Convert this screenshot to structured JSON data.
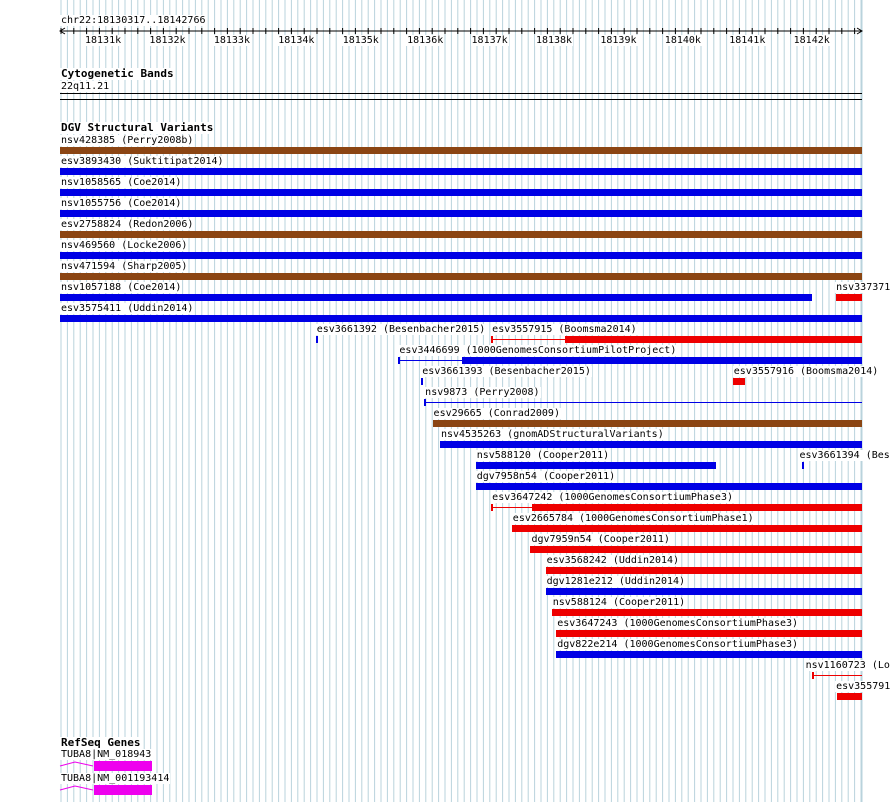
{
  "coords": "chr22:18130317..18142766",
  "ruler_ticks": [
    "18131k",
    "18132k",
    "18133k",
    "18134k",
    "18135k",
    "18136k",
    "18137k",
    "18138k",
    "18139k",
    "18140k",
    "18141k",
    "18142k"
  ],
  "colors": {
    "grid": "#b9d3dc",
    "blue": "#0000e5",
    "red": "#ee0000",
    "brown": "#8b4513",
    "magenta": "#ee00ee"
  },
  "cytoband": {
    "title": "Cytogenetic Bands",
    "band": "22q11.21"
  },
  "dgv": {
    "title": "DGV Structural Variants",
    "features": [
      {
        "label": "nsv428385 (Perry2008b)",
        "color": "brown",
        "start": 18130317,
        "end": 18142766
      },
      {
        "label": "esv3893430 (Suktitipat2014)",
        "color": "blue",
        "start": 18130317,
        "end": 18142766
      },
      {
        "label": "nsv1058565 (Coe2014)",
        "color": "blue",
        "start": 18130317,
        "end": 18142766
      },
      {
        "label": "nsv1055756 (Coe2014)",
        "color": "blue",
        "start": 18130317,
        "end": 18142766
      },
      {
        "label": "esv2758824 (Redon2006)",
        "color": "brown",
        "start": 18130317,
        "end": 18142766
      },
      {
        "label": "nsv469560 (Locke2006)",
        "color": "blue",
        "start": 18130317,
        "end": 18142766
      },
      {
        "label": "nsv471594 (Sharp2005)",
        "color": "brown",
        "start": 18130317,
        "end": 18142766
      },
      {
        "label": "nsv1057188 (Coe2014)",
        "color": "blue",
        "start": 18130317,
        "end": 18141990
      },
      {
        "label": "nsv337371",
        "color": "red",
        "start": 18142370,
        "end": 18142766
      },
      {
        "label": "esv3575411 (Uddin2014)",
        "color": "blue",
        "start": 18130317,
        "end": 18142766
      },
      {
        "label": "esv3661392 (Besenbacher2015)",
        "color": "blue",
        "start": 18134287,
        "end": 18134310
      },
      {
        "label": "esv3557915 (Boomsma2014)",
        "color": "red",
        "start": 18137010,
        "end": 18142766,
        "thin_from": 18137010,
        "thick_from": 18138150
      },
      {
        "label": "esv3446699 (1000GenomesConsortiumPilotProject)",
        "color": "blue",
        "start": 18135570,
        "end": 18142766,
        "thin_from": 18135570,
        "thick_from": 18136560
      },
      {
        "label": "esv3661393 (Besenbacher2015)",
        "color": "blue",
        "start": 18135925,
        "end": 18135950
      },
      {
        "label": "esv3557916 (Boomsma2014)",
        "color": "red",
        "start": 18140760,
        "end": 18140950
      },
      {
        "label": "nsv9873 (Perry2008)",
        "color": "blue",
        "start": 18135970,
        "end": 18142766,
        "thin_only": true
      },
      {
        "label": "esv29665 (Conrad2009)",
        "color": "brown",
        "start": 18136100,
        "end": 18142766
      },
      {
        "label": "nsv4535263 (gnomADStructuralVariants)",
        "color": "blue",
        "start": 18136215,
        "end": 18142766
      },
      {
        "label": "nsv588120 (Cooper2011)",
        "color": "blue",
        "start": 18136770,
        "end": 18140500
      },
      {
        "label": "esv3661394 (Bes",
        "color": "blue",
        "start": 18141830,
        "end": 18141855
      },
      {
        "label": "dgv7958n54 (Cooper2011)",
        "color": "blue",
        "start": 18136770,
        "end": 18142766
      },
      {
        "label": "esv3647242 (1000GenomesConsortiumPhase3)",
        "color": "red",
        "start": 18137010,
        "end": 18142766,
        "thin_from": 18137010,
        "thick_from": 18137650
      },
      {
        "label": "esv2665784 (1000GenomesConsortiumPhase1)",
        "color": "red",
        "start": 18137330,
        "end": 18142766
      },
      {
        "label": "dgv7959n54 (Cooper2011)",
        "color": "red",
        "start": 18137620,
        "end": 18142766
      },
      {
        "label": "esv3568242 (Uddin2014)",
        "color": "red",
        "start": 18137855,
        "end": 18142766
      },
      {
        "label": "dgv1281e212 (Uddin2014)",
        "color": "blue",
        "start": 18137855,
        "end": 18142766
      },
      {
        "label": "nsv588124 (Cooper2011)",
        "color": "red",
        "start": 18137950,
        "end": 18142766
      },
      {
        "label": "esv3647243 (1000GenomesConsortiumPhase3)",
        "color": "red",
        "start": 18138020,
        "end": 18142766
      },
      {
        "label": "dgv822e214 (1000GenomesConsortiumPhase3)",
        "color": "blue",
        "start": 18138020,
        "end": 18142766
      },
      {
        "label": "nsv1160723 (Lo",
        "color": "red",
        "start": 18141990,
        "end": 18142766,
        "thin_only": true
      },
      {
        "label": "esv355791",
        "color": "red",
        "start": 18142385,
        "end": 18142766
      }
    ]
  },
  "refseq": {
    "title": "RefSeq Genes",
    "genes": [
      {
        "label": "TUBA8|NM_018943"
      },
      {
        "label": "TUBA8|NM_001193414"
      }
    ]
  }
}
